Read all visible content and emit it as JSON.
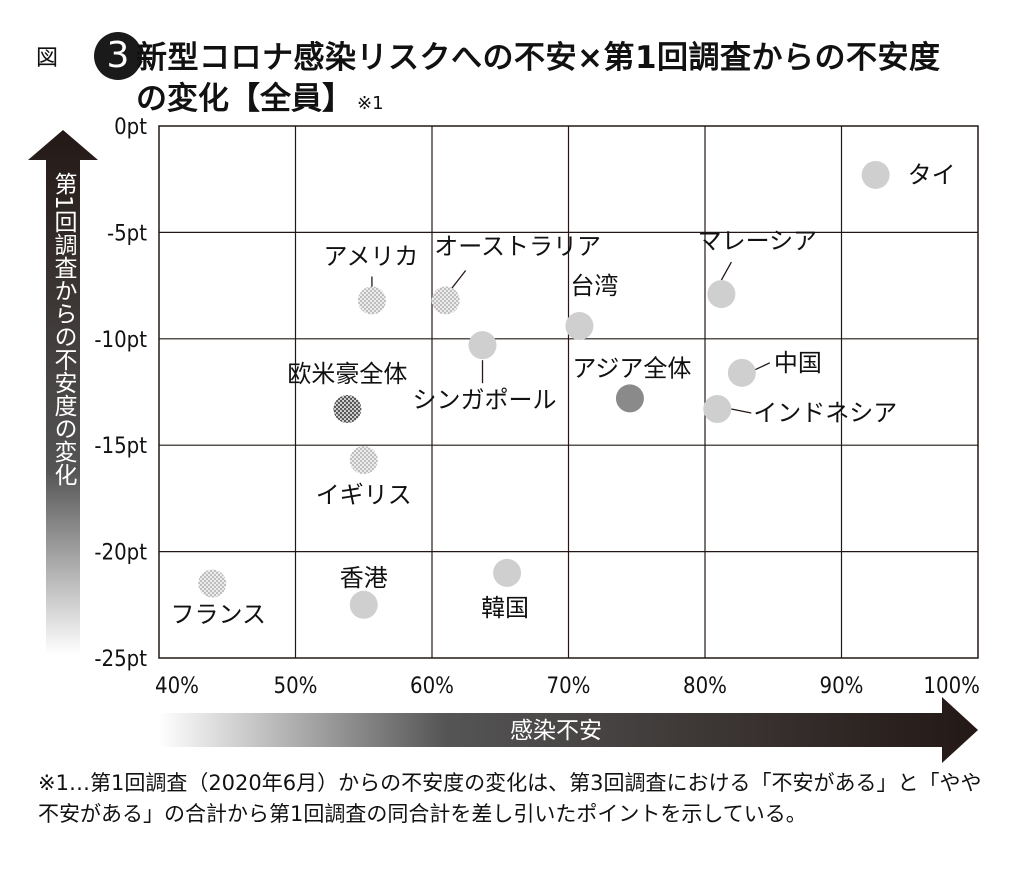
{
  "header": {
    "figure_label": "図",
    "figure_number": "3",
    "title_line1": "新型コロナ感染リスクへの不安×第1回調査からの不安度",
    "title_line2": "の変化【全員】",
    "title_note": "※1"
  },
  "colors": {
    "axis_arrow": "#231815",
    "grid": "#231815",
    "light_point": "#cfcfcf",
    "dark_point": "#8a8a8a"
  },
  "chart_data": {
    "type": "scatter",
    "xlabel": "感染不安",
    "ylabel": "第1回調査からの不安度の変化",
    "xlim": [
      40,
      100
    ],
    "ylim": [
      -25,
      0
    ],
    "x_ticks": [
      40,
      50,
      60,
      70,
      80,
      90,
      100
    ],
    "y_ticks": [
      0,
      -5,
      -10,
      -15,
      -20,
      -25
    ],
    "x_tick_labels": [
      "40%",
      "50%",
      "60%",
      "70%",
      "80%",
      "90%",
      "100%"
    ],
    "y_tick_labels": [
      "0pt",
      "-5pt",
      "-10pt",
      "-15pt",
      "-20pt",
      "-25pt"
    ],
    "grid": true,
    "points": [
      {
        "label": "タイ",
        "x": 92.5,
        "y": -2.3,
        "style": "solid-light"
      },
      {
        "label": "マレーシア",
        "x": 81.2,
        "y": -7.9,
        "style": "solid-light"
      },
      {
        "label": "台湾",
        "x": 70.8,
        "y": -9.4,
        "style": "solid-light"
      },
      {
        "label": "中国",
        "x": 82.7,
        "y": -11.6,
        "style": "solid-light"
      },
      {
        "label": "インドネシア",
        "x": 80.9,
        "y": -13.3,
        "style": "solid-light"
      },
      {
        "label": "アジア全体",
        "x": 74.5,
        "y": -12.8,
        "style": "solid-dark"
      },
      {
        "label": "シンガポール",
        "x": 63.7,
        "y": -10.3,
        "style": "solid-light"
      },
      {
        "label": "オーストラリア",
        "x": 61.0,
        "y": -8.2,
        "style": "dotted-light"
      },
      {
        "label": "アメリカ",
        "x": 55.6,
        "y": -8.2,
        "style": "dotted-light"
      },
      {
        "label": "欧米豪全体",
        "x": 53.8,
        "y": -13.3,
        "style": "dotted-dark"
      },
      {
        "label": "イギリス",
        "x": 55.0,
        "y": -15.7,
        "style": "dotted-light"
      },
      {
        "label": "韓国",
        "x": 65.5,
        "y": -21.0,
        "style": "solid-light"
      },
      {
        "label": "香港",
        "x": 55.0,
        "y": -22.5,
        "style": "solid-light"
      },
      {
        "label": "フランス",
        "x": 43.9,
        "y": -21.5,
        "style": "dotted-light"
      }
    ]
  },
  "footnote": "※1…第1回調査（2020年6月）からの不安度の変化は、第3回調査における「不安がある」と「やや不安がある」の合計から第1回調査の同合計を差し引いたポイントを示している。"
}
